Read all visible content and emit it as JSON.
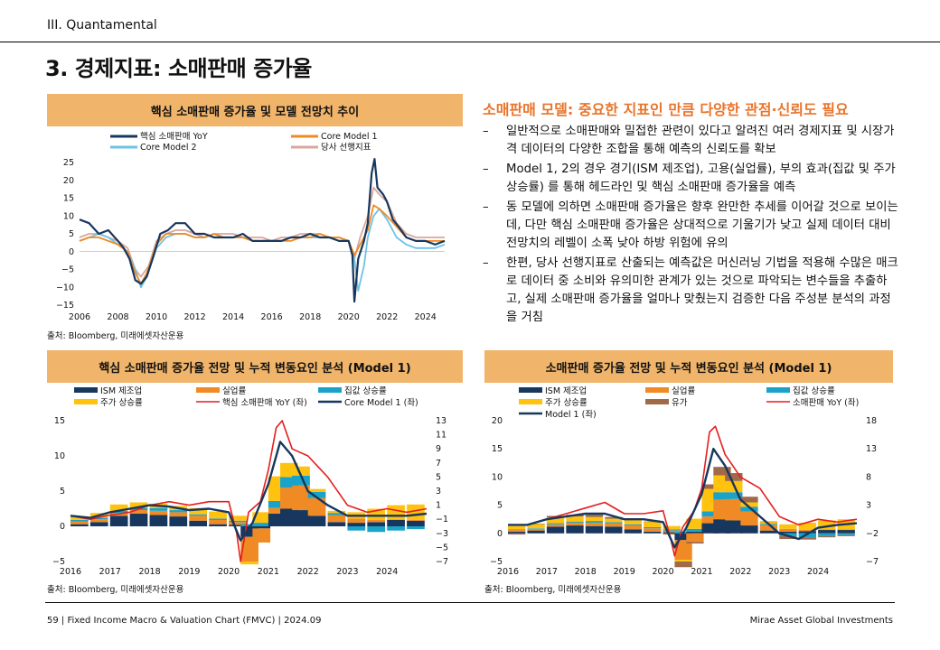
{
  "header": {
    "section": "III. Quantamental",
    "title": "3. 경제지표: 소매판매 증가율"
  },
  "right_text": {
    "heading": "소매판매 모델: 중요한 지표인 만큼 다양한 관점·신뢰도 필요",
    "bullets": [
      "일반적으로 소매판매와 밀접한 관련이 있다고 알려진 여러 경제지표 및 시장가격 데이터의 다양한 조합을 통해 예측의 신뢰도를 확보",
      "Model 1, 2의 경우 경기(ISM 제조업), 고용(실업률), 부의 효과(집값 및 주가 상승률) 를 통해 헤드라인 및 핵심 소매판매 증가율을 예측",
      "동 모델에 의하면 소매판매 증가율은 향후 완만한 추세를 이어갈 것으로 보이는데, 다만 핵심 소매판매 증가율은 상대적으로 기울기가 낮고 실제 데이터 대비 전망치의 레벨이 소폭 낮아 하방 위험에 유의",
      "한편, 당사 선행지표로 산출되는 예측값은 머신러닝 기법을 적용해 수많은 매크로 데이터 중 소비와 유의미한 관계가 있는 것으로 파악되는 변수들을 추출하고, 실제 소매판매 증가율을 얼마나 맞췄는지 검증한 다음 주성분 분석의 과정을 거침"
    ]
  },
  "footer": {
    "left": "59 | Fixed Income Macro & Valuation Chart (FMVC) | 2024.09",
    "right": "Mirae Asset Global Investments"
  },
  "colors": {
    "navy": "#17375e",
    "orange": "#f08a24",
    "lightblue": "#6cc3e6",
    "pinkbrown": "#d9a79d",
    "cyan": "#1aa3c9",
    "yellow": "#ffc20e",
    "red": "#e41e1e",
    "brown": "#a0694a",
    "header": "#f0b46a"
  },
  "chart_data": [
    {
      "type": "line",
      "title": "핵심 소매판매 증가율 및 모델 전망치 추이",
      "source": "출처: Bloomberg, 미래에셋자산운용",
      "x_ticks": [
        "2006",
        "2008",
        "2010",
        "2012",
        "2014",
        "2016",
        "2018",
        "2020",
        "2022",
        "2024"
      ],
      "xlim": [
        2006,
        2025
      ],
      "ylim": [
        -15,
        25
      ],
      "y_ticks": [
        "25",
        "20",
        "15",
        "10",
        "5",
        "0",
        "−5",
        "−10",
        "−15"
      ],
      "legend": [
        "핵심 소매판매 YoY",
        "Core Model 1",
        "Core Model 2",
        "당사 선행지표"
      ],
      "series": [
        {
          "name": "핵심 소매판매 YoY",
          "color": "#17375e",
          "x": [
            2006,
            2006.5,
            2007,
            2007.5,
            2008,
            2008.3,
            2008.6,
            2008.9,
            2009.2,
            2009.5,
            2009.8,
            2010.2,
            2010.6,
            2011,
            2011.5,
            2012,
            2012.5,
            2013,
            2013.5,
            2014,
            2014.5,
            2015,
            2015.5,
            2016,
            2016.5,
            2017,
            2017.5,
            2018,
            2018.5,
            2019,
            2019.5,
            2020,
            2020.2,
            2020.3,
            2020.5,
            2020.8,
            2021,
            2021.2,
            2021.35,
            2021.5,
            2021.8,
            2022,
            2022.3,
            2022.6,
            2023,
            2023.5,
            2024,
            2024.5,
            2025
          ],
          "y": [
            9,
            8,
            5,
            6,
            3,
            1,
            -2,
            -8,
            -9,
            -7,
            -2,
            5,
            6,
            8,
            8,
            5,
            5,
            4,
            4,
            4,
            5,
            3,
            3,
            3,
            3,
            4,
            4,
            5,
            4,
            4,
            3,
            3,
            -1,
            -14,
            -2,
            3,
            8,
            22,
            26,
            18,
            16,
            14,
            9,
            7,
            4,
            3,
            3,
            2,
            3
          ]
        },
        {
          "name": "Core Model 1",
          "color": "#f08a24",
          "x": [
            2006,
            2006.5,
            2007,
            2007.5,
            2008,
            2008.5,
            2008.9,
            2009.2,
            2009.5,
            2010,
            2010.5,
            2011,
            2011.5,
            2012,
            2012.5,
            2013,
            2013.5,
            2014,
            2014.5,
            2015,
            2015.5,
            2016,
            2016.5,
            2017,
            2017.5,
            2018,
            2018.5,
            2019,
            2019.5,
            2020,
            2020.3,
            2020.6,
            2021,
            2021.3,
            2021.6,
            2022,
            2022.5,
            2023,
            2023.5,
            2024,
            2024.5,
            2025
          ],
          "y": [
            3,
            4,
            4,
            3,
            2,
            0,
            -6,
            -9,
            -6,
            2,
            5,
            5,
            5,
            4,
            4,
            5,
            4,
            4,
            4,
            3,
            3,
            3,
            3,
            3,
            4,
            4,
            5,
            4,
            4,
            3,
            -1,
            2,
            6,
            13,
            12,
            10,
            7,
            4,
            3,
            3,
            3,
            3
          ]
        },
        {
          "name": "Core Model 2",
          "color": "#6cc3e6",
          "x": [
            2006,
            2006.5,
            2007,
            2007.5,
            2008,
            2008.5,
            2008.9,
            2009.2,
            2009.5,
            2010,
            2010.5,
            2011,
            2011.5,
            2012,
            2012.5,
            2013,
            2013.5,
            2014,
            2014.5,
            2015,
            2015.5,
            2016,
            2016.5,
            2017,
            2017.5,
            2018,
            2018.5,
            2019,
            2019.5,
            2020,
            2020.3,
            2020.5,
            2020.8,
            2021,
            2021.3,
            2021.6,
            2022,
            2022.5,
            2023,
            2023.5,
            2024,
            2024.5,
            2025
          ],
          "y": [
            3,
            4,
            5,
            4,
            2,
            0,
            -5,
            -10,
            -7,
            1,
            4,
            5,
            5,
            4,
            4,
            5,
            4,
            4,
            4,
            3,
            3,
            3,
            3,
            4,
            4,
            4,
            4,
            4,
            3,
            3,
            -2,
            -11,
            -4,
            4,
            10,
            12,
            9,
            4,
            2,
            1,
            1,
            1,
            2
          ]
        },
        {
          "name": "당사 선행지표",
          "color": "#d9a79d",
          "x": [
            2006,
            2006.5,
            2007,
            2007.5,
            2008,
            2008.5,
            2008.9,
            2009.2,
            2009.6,
            2010,
            2010.5,
            2011,
            2011.5,
            2012,
            2012.5,
            2013,
            2013.5,
            2014,
            2014.5,
            2015,
            2015.5,
            2016,
            2016.5,
            2017,
            2017.5,
            2018,
            2018.5,
            2019,
            2019.5,
            2020,
            2020.3,
            2020.6,
            2021,
            2021.3,
            2021.6,
            2022,
            2022.5,
            2023,
            2023.5,
            2024,
            2024.5,
            2025
          ],
          "y": [
            4,
            5,
            5,
            4,
            3,
            1,
            -5,
            -7,
            -4,
            3,
            5,
            6,
            6,
            5,
            4,
            5,
            5,
            5,
            4,
            4,
            4,
            3,
            4,
            4,
            5,
            5,
            5,
            4,
            4,
            3,
            -2,
            4,
            10,
            18,
            16,
            14,
            8,
            5,
            4,
            4,
            4,
            4
          ]
        }
      ]
    },
    {
      "type": "bar",
      "title": "핵심 소매판매 증가율 전망 및 누적 변동요인 분석 (Model 1)",
      "source": "출처: Bloomberg, 미래에셋자산운용",
      "x_ticks": [
        "2016",
        "2017",
        "2018",
        "2019",
        "2020",
        "2021",
        "2022",
        "2023",
        "2024"
      ],
      "xlim": [
        2016,
        2025
      ],
      "ylim": [
        -5,
        15
      ],
      "y_ticks": [
        "15",
        "10",
        "5",
        "0",
        "−5"
      ],
      "y2_ticks": [
        "13",
        "11",
        "9",
        "7",
        "5",
        "3",
        "1",
        "−1",
        "−3",
        "−5",
        "−7"
      ],
      "legend": [
        "ISM 제조업",
        "실업률",
        "집값 상승률",
        "주가 상승률",
        "핵심 소매판매 YoY (좌)",
        "Core Model 1 (좌)"
      ],
      "bars": {
        "x": [
          2016,
          2016.5,
          2017,
          2017.5,
          2018,
          2018.5,
          2019,
          2019.5,
          2020,
          2020.3,
          2020.6,
          2021,
          2021.3,
          2021.6,
          2022,
          2022.5,
          2023,
          2023.5,
          2024,
          2024.5
        ],
        "ism": [
          0.3,
          0.6,
          1.5,
          1.8,
          1.6,
          1.4,
          0.8,
          0.3,
          0.2,
          -1.5,
          -0.3,
          1.8,
          2.5,
          2.3,
          1.5,
          0.6,
          0.5,
          0.6,
          0.9,
          0.8
        ],
        "unemployment": [
          0.4,
          0.4,
          0.4,
          0.5,
          0.6,
          0.6,
          0.7,
          0.6,
          0.4,
          -3.5,
          -2,
          0.8,
          3,
          3.5,
          2.5,
          1,
          0.6,
          0.3,
          0.1,
          0.1
        ],
        "house": [
          0.2,
          0.2,
          0.3,
          0.3,
          0.4,
          0.3,
          0.2,
          0.2,
          0.2,
          0.3,
          0.5,
          1,
          1.5,
          1.4,
          0.9,
          0.3,
          -0.6,
          -0.8,
          -0.6,
          -0.4
        ],
        "stock": [
          0.5,
          0.7,
          0.9,
          0.8,
          0.6,
          0.6,
          0.9,
          1,
          0.7,
          -0.4,
          1.5,
          3.5,
          2,
          1.3,
          0.4,
          0.3,
          0.9,
          1.6,
          2,
          2.2
        ]
      },
      "series": [
        {
          "name": "핵심 소매판매 YoY (좌)",
          "color": "#e41e1e",
          "x": [
            2016,
            2016.5,
            2017,
            2017.5,
            2018,
            2018.5,
            2019,
            2019.5,
            2020,
            2020.2,
            2020.3,
            2020.5,
            2020.8,
            2021,
            2021.2,
            2021.35,
            2021.6,
            2022,
            2022.5,
            2023,
            2023.5,
            2024,
            2024.5,
            2025
          ],
          "y": [
            1.5,
            1,
            1.6,
            2,
            3,
            3.5,
            3,
            3.5,
            3.5,
            -1,
            -5,
            2,
            3.5,
            8,
            14,
            15,
            11,
            10,
            7,
            3,
            2,
            2.5,
            2,
            2.5
          ]
        },
        {
          "name": "Core Model 1 (좌)",
          "color": "#17375e",
          "x": [
            2016,
            2016.5,
            2017,
            2017.5,
            2018,
            2018.5,
            2019,
            2019.5,
            2020,
            2020.3,
            2020.6,
            2021,
            2021.3,
            2021.6,
            2022,
            2022.5,
            2023,
            2023.5,
            2024,
            2024.5,
            2025
          ],
          "y": [
            1.5,
            1.2,
            2,
            2.5,
            3,
            2.8,
            2.3,
            2.5,
            2,
            -2,
            0.5,
            6,
            12,
            10,
            5,
            3,
            1.5,
            1.5,
            1.5,
            1.5,
            1.8
          ]
        }
      ]
    },
    {
      "type": "bar",
      "title": "소매판매 증가율 전망 및 누적 변동요인 분석 (Model 1)",
      "source": "출처: Bloomberg, 미래에셋자산운용",
      "x_ticks": [
        "2016",
        "2017",
        "2018",
        "2019",
        "2020",
        "2021",
        "2022",
        "2023",
        "2024"
      ],
      "xlim": [
        2016,
        2025
      ],
      "ylim": [
        -5,
        20
      ],
      "y_ticks": [
        "20",
        "15",
        "10",
        "5",
        "0",
        "−5"
      ],
      "y2_ticks": [
        "18",
        "13",
        "8",
        "3",
        "−2",
        "−7"
      ],
      "legend": [
        "ISM 제조업",
        "실업률",
        "집값 상승률",
        "주가 상승률",
        "유가",
        "소매판매 YoY (좌)",
        "Model 1 (좌)"
      ],
      "bars": {
        "x": [
          2016,
          2016.5,
          2017,
          2017.5,
          2018,
          2018.5,
          2019,
          2019.5,
          2020,
          2020.3,
          2020.6,
          2021,
          2021.3,
          2021.6,
          2022,
          2022.5,
          2023,
          2023.5,
          2024,
          2024.5
        ],
        "ism": [
          0.3,
          0.5,
          1.2,
          1.4,
          1.3,
          1.2,
          0.7,
          0.3,
          0.2,
          -1.2,
          0.3,
          1.8,
          2.5,
          2.3,
          1.4,
          0.5,
          0.3,
          0.4,
          0.6,
          0.6
        ],
        "unemployment": [
          0.3,
          0.3,
          0.4,
          0.5,
          0.6,
          0.6,
          0.7,
          0.6,
          0.3,
          -3.5,
          -1.5,
          1.2,
          3.5,
          3.8,
          2.5,
          1,
          0.5,
          0.2,
          0.1,
          0.1
        ],
        "house": [
          0.1,
          0.1,
          0.2,
          0.2,
          0.3,
          0.2,
          0.2,
          0.2,
          0.2,
          0.3,
          0.5,
          0.9,
          1.3,
          1.2,
          0.8,
          0.2,
          -0.5,
          -0.7,
          -0.5,
          -0.3
        ],
        "stock": [
          0.6,
          0.8,
          1,
          0.9,
          0.7,
          0.6,
          0.9,
          1,
          0.6,
          -0.3,
          1.8,
          4,
          3,
          2,
          0.8,
          0.4,
          0.8,
          1.3,
          1.6,
          1.8
        ],
        "oil": [
          -0.2,
          0,
          0.3,
          0.3,
          0.4,
          0.3,
          0,
          0,
          -0.2,
          -1,
          -0.3,
          0.8,
          1.5,
          1.4,
          1,
          0,
          -0.5,
          -0.4,
          -0.2,
          -0.2
        ]
      },
      "series": [
        {
          "name": "소매판매 YoY (좌)",
          "color": "#e41e1e",
          "x": [
            2016,
            2016.5,
            2017,
            2017.5,
            2018,
            2018.5,
            2019,
            2019.5,
            2020,
            2020.2,
            2020.3,
            2020.5,
            2020.8,
            2021,
            2021.2,
            2021.35,
            2021.6,
            2022,
            2022.5,
            2023,
            2023.5,
            2024,
            2024.5,
            2025
          ],
          "y": [
            1.5,
            1.5,
            2.5,
            3.5,
            4.5,
            5.5,
            3.5,
            3.5,
            4,
            -1,
            -4,
            1,
            4,
            8,
            18,
            19,
            14,
            10,
            8,
            3,
            1.5,
            2.5,
            2,
            2.5
          ]
        },
        {
          "name": "Model 1 (좌)",
          "color": "#17375e",
          "x": [
            2016,
            2016.5,
            2017,
            2017.5,
            2018,
            2018.5,
            2019,
            2019.5,
            2020,
            2020.3,
            2020.6,
            2021,
            2021.3,
            2021.6,
            2022,
            2022.5,
            2023,
            2023.5,
            2024,
            2024.5,
            2025
          ],
          "y": [
            1.5,
            1.5,
            2.5,
            3,
            3.5,
            3.5,
            2.5,
            2.5,
            2,
            -2.5,
            1,
            7,
            15,
            12,
            6,
            3,
            0,
            -1,
            1,
            1.5,
            1.8
          ]
        }
      ]
    }
  ]
}
